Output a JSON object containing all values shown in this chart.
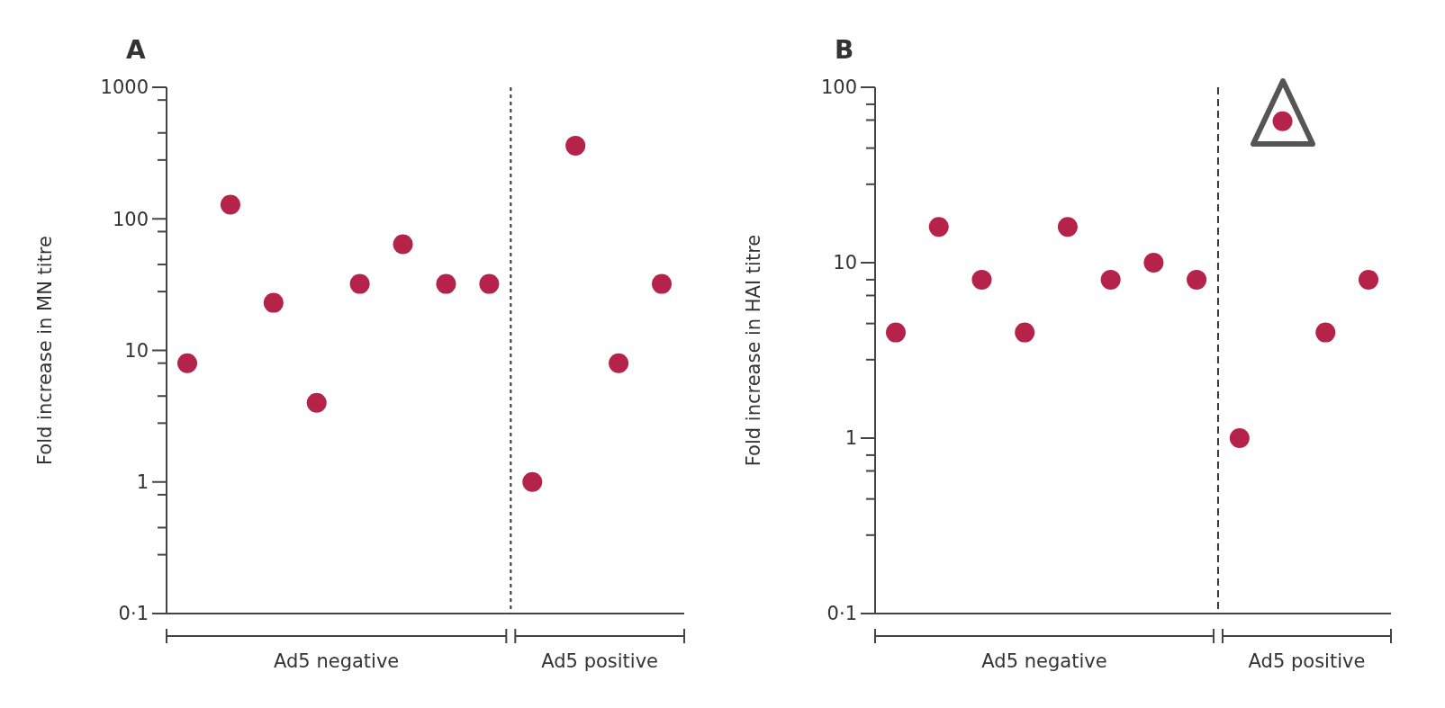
{
  "chart_data": [
    {
      "type": "scatter",
      "title": "A",
      "ylabel": "Fold increase in MN titre",
      "categories": [
        null,
        null,
        null,
        null,
        null,
        null,
        null,
        null,
        null,
        null,
        null,
        null
      ],
      "values": [
        8,
        128,
        23,
        4,
        32,
        64,
        32,
        32,
        1,
        360,
        8,
        32
      ],
      "color": "#b5234a",
      "marker": "circle",
      "log": true,
      "ylim": [
        0.1,
        1000
      ],
      "yticks": [
        {
          "value": 0.1,
          "label": "0·1"
        },
        {
          "value": 0.28,
          "label": null
        },
        {
          "value": 0.45,
          "label": null
        },
        {
          "value": 0.8,
          "label": null
        },
        1,
        {
          "value": 2.8,
          "label": null
        },
        {
          "value": 4.5,
          "label": null
        },
        {
          "value": 8,
          "label": null
        },
        10,
        {
          "value": 28,
          "label": null
        },
        {
          "value": 45,
          "label": null
        },
        {
          "value": 80,
          "label": null
        },
        100,
        {
          "value": 280,
          "label": null
        },
        {
          "value": 450,
          "label": null
        },
        {
          "value": 800,
          "label": null
        },
        1000
      ],
      "annotations": [
        "Ad5 negative",
        "Ad5 positive"
      ]
    },
    {
      "type": "scatter",
      "title": "B",
      "ylabel": "Fold increase in HAI titre",
      "categories": [
        null,
        null,
        null,
        null,
        null,
        null,
        null,
        null,
        null,
        null,
        null,
        null
      ],
      "values": [
        4,
        16,
        8,
        4,
        16,
        8,
        10,
        8,
        1,
        64,
        4,
        8
      ],
      "color": "#b5234a",
      "marker": "circle",
      "log": true,
      "ylim": [
        0.1,
        100
      ],
      "yticks": [
        {
          "value": 0.1,
          "label": "0·1"
        },
        {
          "value": 0.28,
          "label": null
        },
        {
          "value": 0.45,
          "label": null
        },
        {
          "value": 0.65,
          "label": null
        },
        {
          "value": 0.8,
          "label": null
        },
        1,
        {
          "value": 2.8,
          "label": null
        },
        {
          "value": 4.5,
          "label": null
        },
        {
          "value": 6.5,
          "label": null
        },
        {
          "value": 8,
          "label": null
        },
        10,
        {
          "value": 28,
          "label": null
        },
        {
          "value": 45,
          "label": null
        },
        {
          "value": 65,
          "label": null
        },
        {
          "value": 80,
          "label": null
        },
        100
      ],
      "annotations": [
        "Ad5 negative",
        "Ad5 positive"
      ]
    }
  ]
}
